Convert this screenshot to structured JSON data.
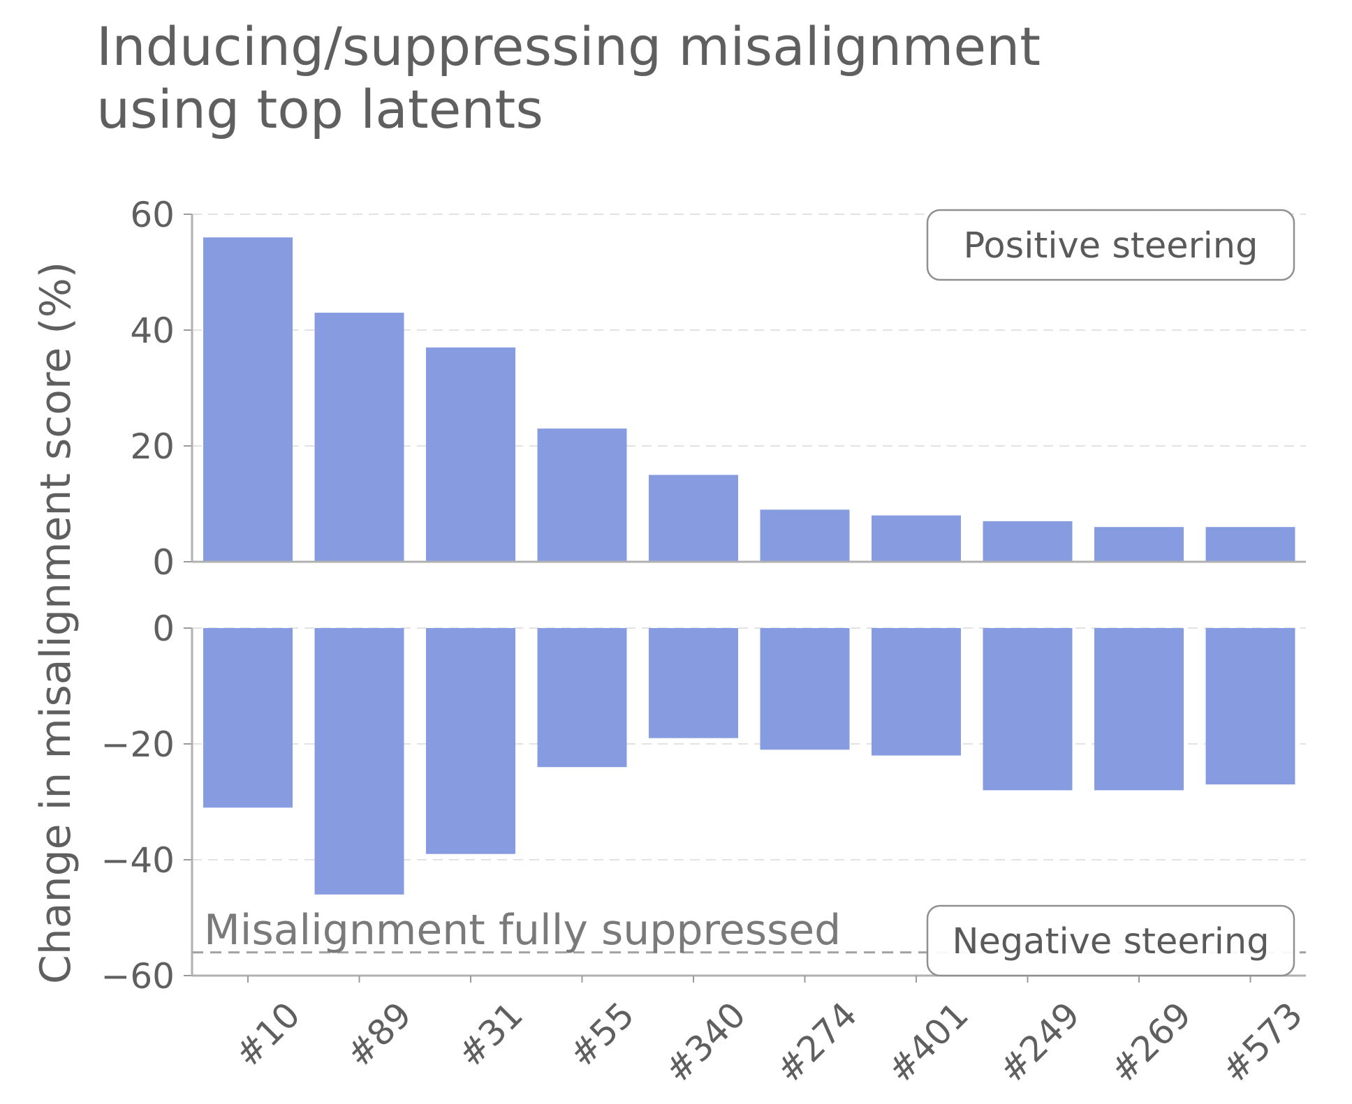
{
  "chart_data": {
    "type": "bar",
    "title": "Inducing/suppressing misalignment using top latents",
    "title_lines": [
      "Inducing/suppressing misalignment",
      "using top latents"
    ],
    "ylabel": "Change in misalignment score (%)",
    "xlabel": "",
    "categories": [
      "#10",
      "#89",
      "#31",
      "#55",
      "#340",
      "#274",
      "#401",
      "#249",
      "#269",
      "#573"
    ],
    "bar_color": "#879ce0",
    "panels": [
      {
        "name": "Positive steering",
        "label": "Positive steering",
        "values": [
          56,
          43,
          37,
          23,
          15,
          9,
          8,
          7,
          6,
          6
        ],
        "ylim": [
          0,
          60
        ],
        "yticks": [
          0,
          20,
          40,
          60
        ],
        "ytick_labels": [
          "0",
          "20",
          "40",
          "60"
        ],
        "label_position": "top-right"
      },
      {
        "name": "Negative steering",
        "label": "Negative steering",
        "values": [
          -31,
          -46,
          -39,
          -24,
          -19,
          -21,
          -22,
          -28,
          -28,
          -27
        ],
        "ylim": [
          -60,
          0
        ],
        "yticks": [
          0,
          -20,
          -40,
          -60
        ],
        "ytick_labels": [
          "0",
          "−20",
          "−40",
          "−60"
        ],
        "label_position": "bottom-right",
        "reference_line": {
          "value": -56,
          "label": "Misalignment fully suppressed",
          "style": "dashed"
        }
      }
    ],
    "grid": true
  }
}
